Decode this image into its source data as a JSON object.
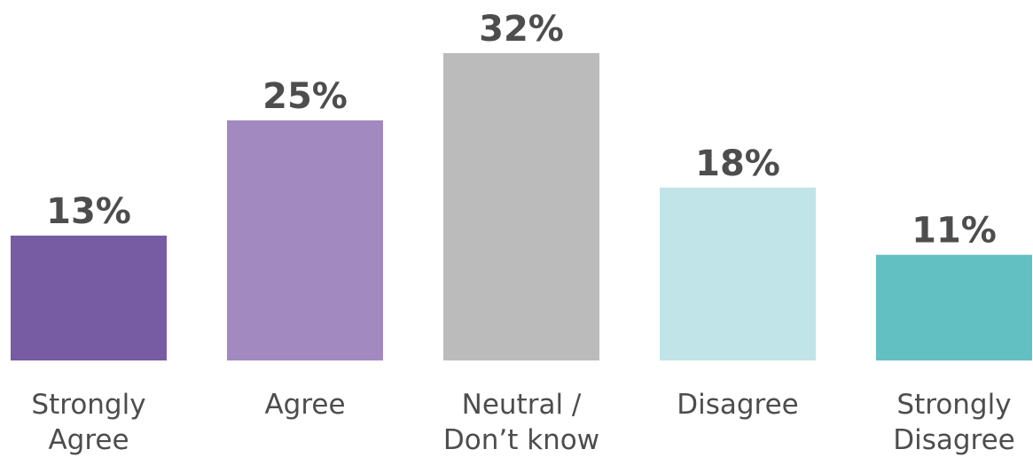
{
  "chart_data": {
    "type": "bar",
    "title": "",
    "xlabel": "",
    "ylabel": "",
    "ylim": [
      0,
      32
    ],
    "grid": false,
    "legend": "none",
    "categories": [
      [
        "Strongly",
        "Agree"
      ],
      [
        "Agree"
      ],
      [
        "Neutral /",
        "Don’t know"
      ],
      [
        "Disagree"
      ],
      [
        "Strongly",
        "Disagree"
      ]
    ],
    "values": [
      13,
      25,
      32,
      18,
      11
    ],
    "value_labels": [
      "13%",
      "25%",
      "32%",
      "18%",
      "11%"
    ],
    "colors": [
      "#775ba3",
      "#a289bf",
      "#bbbbbb",
      "#c0e4e7",
      "#62c0c3"
    ]
  }
}
